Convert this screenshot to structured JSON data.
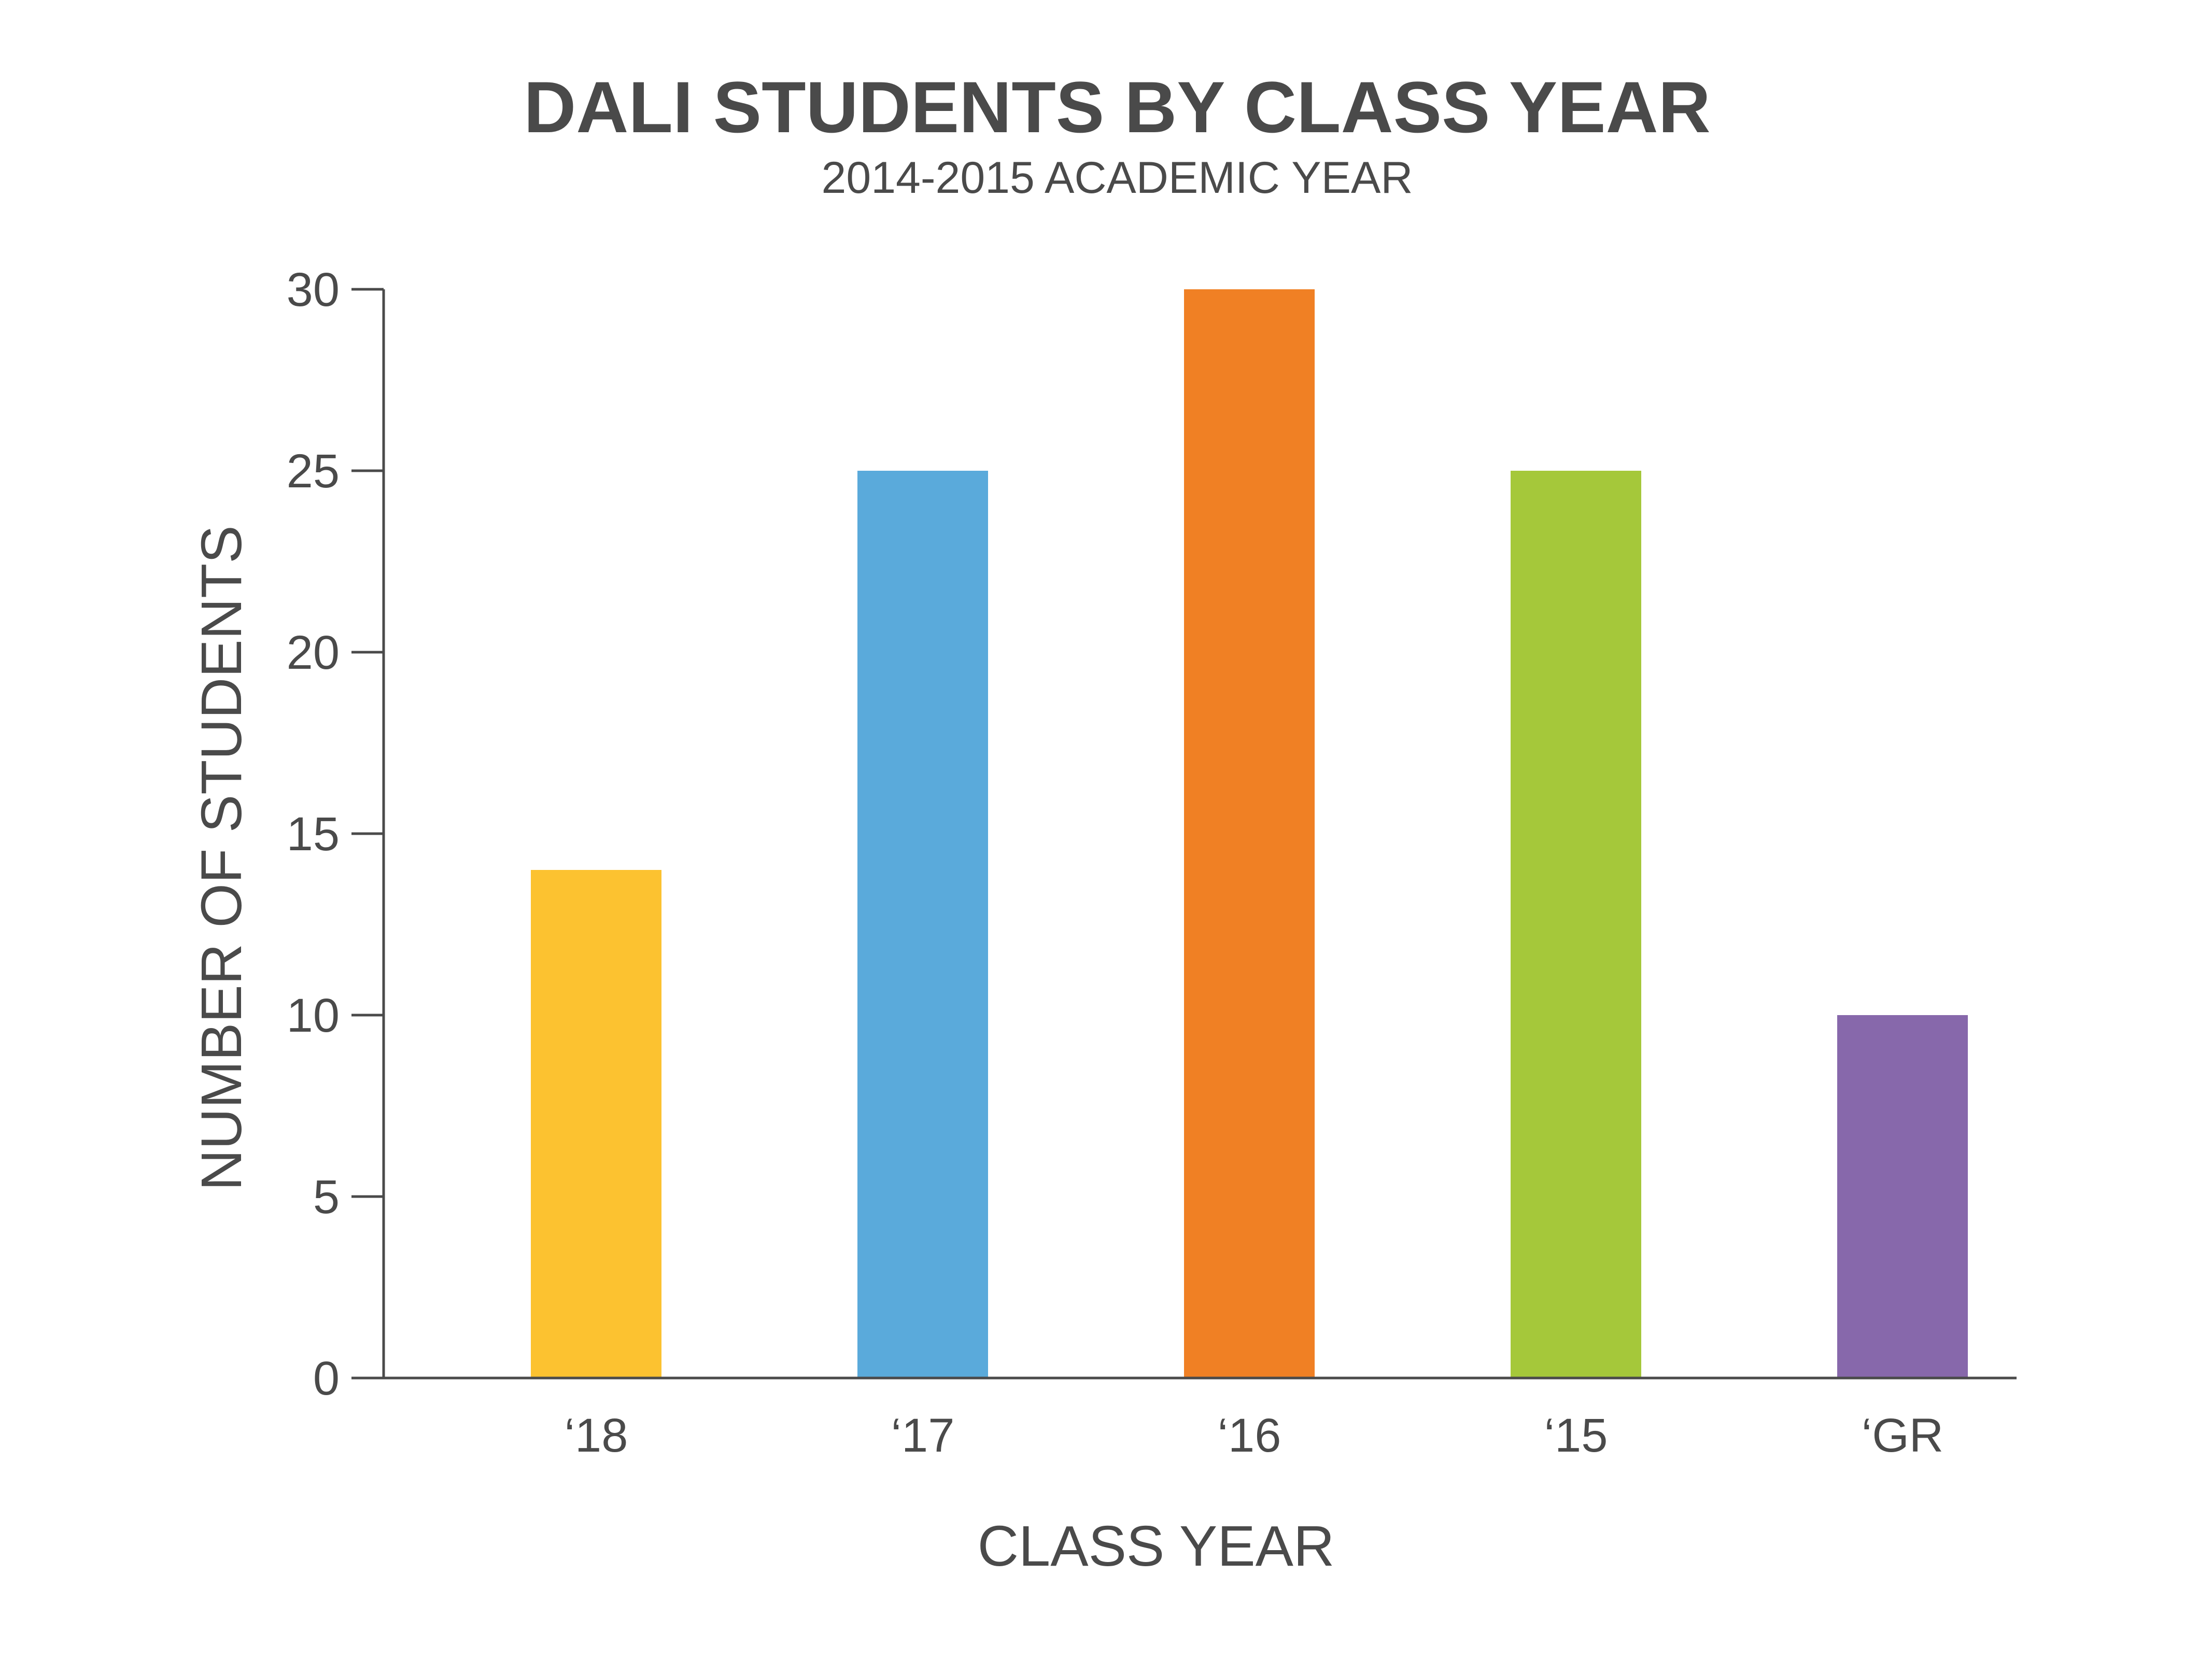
{
  "chart_data": {
    "type": "bar",
    "title": "DALI STUDENTS BY CLASS YEAR",
    "subtitle": "2014-2015 ACADEMIC YEAR",
    "xlabel": "CLASS YEAR",
    "ylabel": "NUMBER OF STUDENTS",
    "categories": [
      "‘18",
      "‘17",
      "‘16",
      "‘15",
      "‘GR"
    ],
    "values": [
      14,
      25,
      30,
      25,
      10
    ],
    "colors": [
      "#fcc230",
      "#5aaadb",
      "#f08024",
      "#a5c83a",
      "#8768ab"
    ],
    "ylim": [
      0,
      30
    ],
    "yticks": [
      0,
      5,
      10,
      15,
      20,
      25,
      30
    ],
    "grid": false,
    "legend": "none"
  }
}
